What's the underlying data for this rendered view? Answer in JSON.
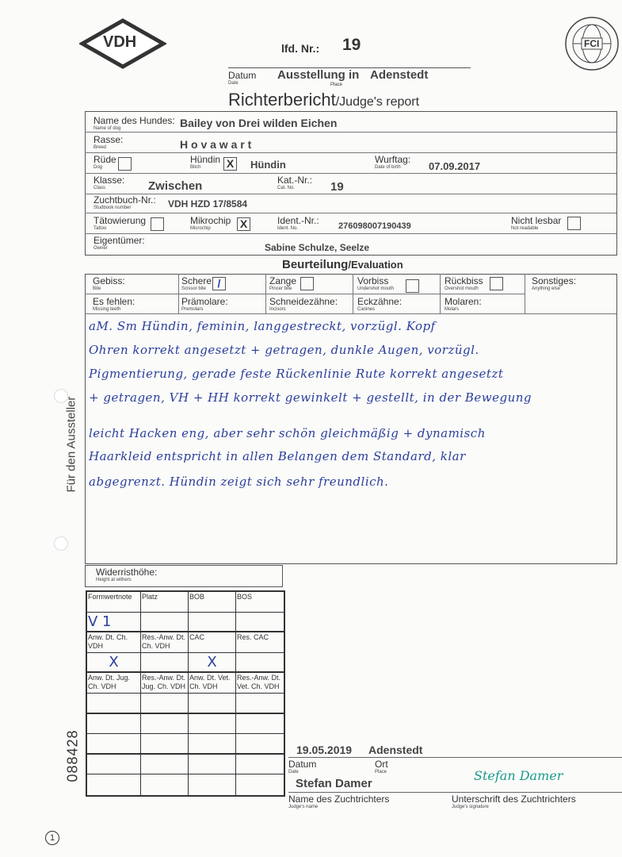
{
  "header": {
    "logo_left": "VDH",
    "logo_right": "FCI",
    "logo_right_ring": "FEDERATION CYNOLOGIQUE INTERNATIONALE",
    "lfd_label": "lfd. Nr.:",
    "lfd_value": "19",
    "datum_label": "Datum",
    "datum_sub": "Date",
    "place_sub": "Place",
    "show_value": "Ausstellung in",
    "show_place": "Adenstedt",
    "title": "Richterbericht",
    "title_en": "/Judge's report"
  },
  "dog": {
    "name_label": "Name des Hundes:",
    "name_sub": "Name of dog",
    "name": "Bailey von Drei wilden Eichen",
    "breed_label": "Rasse:",
    "breed_sub": "Breed",
    "breed": "H o v a w a r t",
    "dog_label": "Rüde",
    "dog_sub": "Dog",
    "dog_checked": false,
    "bitch_label": "Hündin",
    "bitch_sub": "Bitch",
    "bitch_mark": "X",
    "sex_value": "Hündin",
    "dob_label": "Wurftag:",
    "dob_sub": "Date of birth",
    "dob": "07.09.2017",
    "class_label": "Klasse:",
    "class_sub": "Class",
    "class": "Zwischen",
    "cat_label": "Kat.-Nr.:",
    "cat_sub": "Cat. No.",
    "cat": "19",
    "studbook_label": "Zuchtbuch-Nr.:",
    "studbook_sub": "Studbook number",
    "studbook": "VDH HZD  17/8584",
    "tattoo_label": "Tätowierung",
    "tattoo_sub": "Tattoo",
    "chip_label": "Mikrochip",
    "chip_sub": "Microchip",
    "chip_mark": "X",
    "ident_label": "Ident.-Nr.:",
    "ident_sub": "Ident. No.",
    "ident": "276098007190439",
    "unreadable_label": "Nicht lesbar",
    "unreadable_sub": "Not readable",
    "owner_label": "Eigentümer:",
    "owner_sub": "Owner",
    "owner": "Sabine Schulze,  Seelze"
  },
  "evaluation": {
    "title": "Beurteilung",
    "title_en": "/Evaluation",
    "bite": [
      {
        "label": "Gebiss:",
        "sub": "Bite"
      },
      {
        "label": "Schere",
        "sub": "Scissor bite",
        "checked": true
      },
      {
        "label": "Zange",
        "sub": "Pincer bite",
        "checked": false
      },
      {
        "label": "Vorbiss",
        "sub": "Undershot mouth",
        "checked": false
      },
      {
        "label": "Rückbiss",
        "sub": "Overshot mouth",
        "checked": false
      },
      {
        "label": "Sonstiges:",
        "sub": "Anything else"
      }
    ],
    "missing": [
      {
        "label": "Es fehlen:",
        "sub": "Missing teeth"
      },
      {
        "label": "Prämolare:",
        "sub": "Premolars"
      },
      {
        "label": "Schneidezähne:",
        "sub": "Incisors"
      },
      {
        "label": "Eckzähne:",
        "sub": "Canines"
      },
      {
        "label": "Molaren:",
        "sub": "Molars"
      }
    ],
    "handwritten": [
      "aM. Sm Hündin, feminin, langgestreckt, vorzügl. Kopf",
      "Ohren korrekt angesetzt + getragen, dunkle Augen, vorzügl.",
      "Pigmentierung, gerade feste Rückenlinie Rute korrekt angesetzt",
      "+ getragen, VH + HH korrekt gewinkelt + gestellt, in der Bewegung",
      "leicht Hacken eng, aber sehr schön gleichmäßig + dynamisch",
      "Haarkleid entspricht in allen Belangen dem Standard, klar",
      "abgegrenzt. Hündin zeigt sich sehr freundlich."
    ],
    "side_label": "Für den Aussteller",
    "withers_label": "Widerristhöhe:",
    "withers_sub": "Height at withers"
  },
  "awards": {
    "rows": [
      [
        "Formwertnote",
        "Platz",
        "BOB",
        "BOS"
      ],
      [
        "V 1",
        "",
        "",
        ""
      ],
      [
        "Anw. Dt. Ch. VDH",
        "Res.-Anw. Dt. Ch. VDH",
        "CAC",
        "Res. CAC"
      ],
      [
        "X",
        "",
        "X",
        ""
      ],
      [
        "Anw. Dt. Jug. Ch. VDH",
        "Res.-Anw. Dt. Jug. Ch. VDH",
        "Anw. Dt. Vet. Ch. VDH",
        "Res.-Anw. Dt. Vet. Ch. VDH"
      ],
      [
        "",
        "",
        "",
        ""
      ],
      [
        "",
        "",
        "",
        ""
      ],
      [
        "",
        "",
        "",
        ""
      ],
      [
        "",
        "",
        "",
        ""
      ],
      [
        "",
        "",
        "",
        ""
      ]
    ]
  },
  "footer": {
    "date": "19.05.2019",
    "place": "Adenstedt",
    "date_label": "Datum",
    "date_sub": "Date",
    "place_label": "Ort",
    "place_sub": "Place",
    "judge": "Stefan Damer",
    "judge_label": "Name des Zuchtrichters",
    "judge_sub": "Judge's name",
    "sig_label": "Unterschrift des Zuchtrichters",
    "sig_sub": "Judge's signature",
    "signature": "Stefan Damer",
    "serial": "088428",
    "page_no": "1"
  },
  "colors": {
    "ink": "#2a3e9a",
    "signature": "#1a9a8a"
  }
}
